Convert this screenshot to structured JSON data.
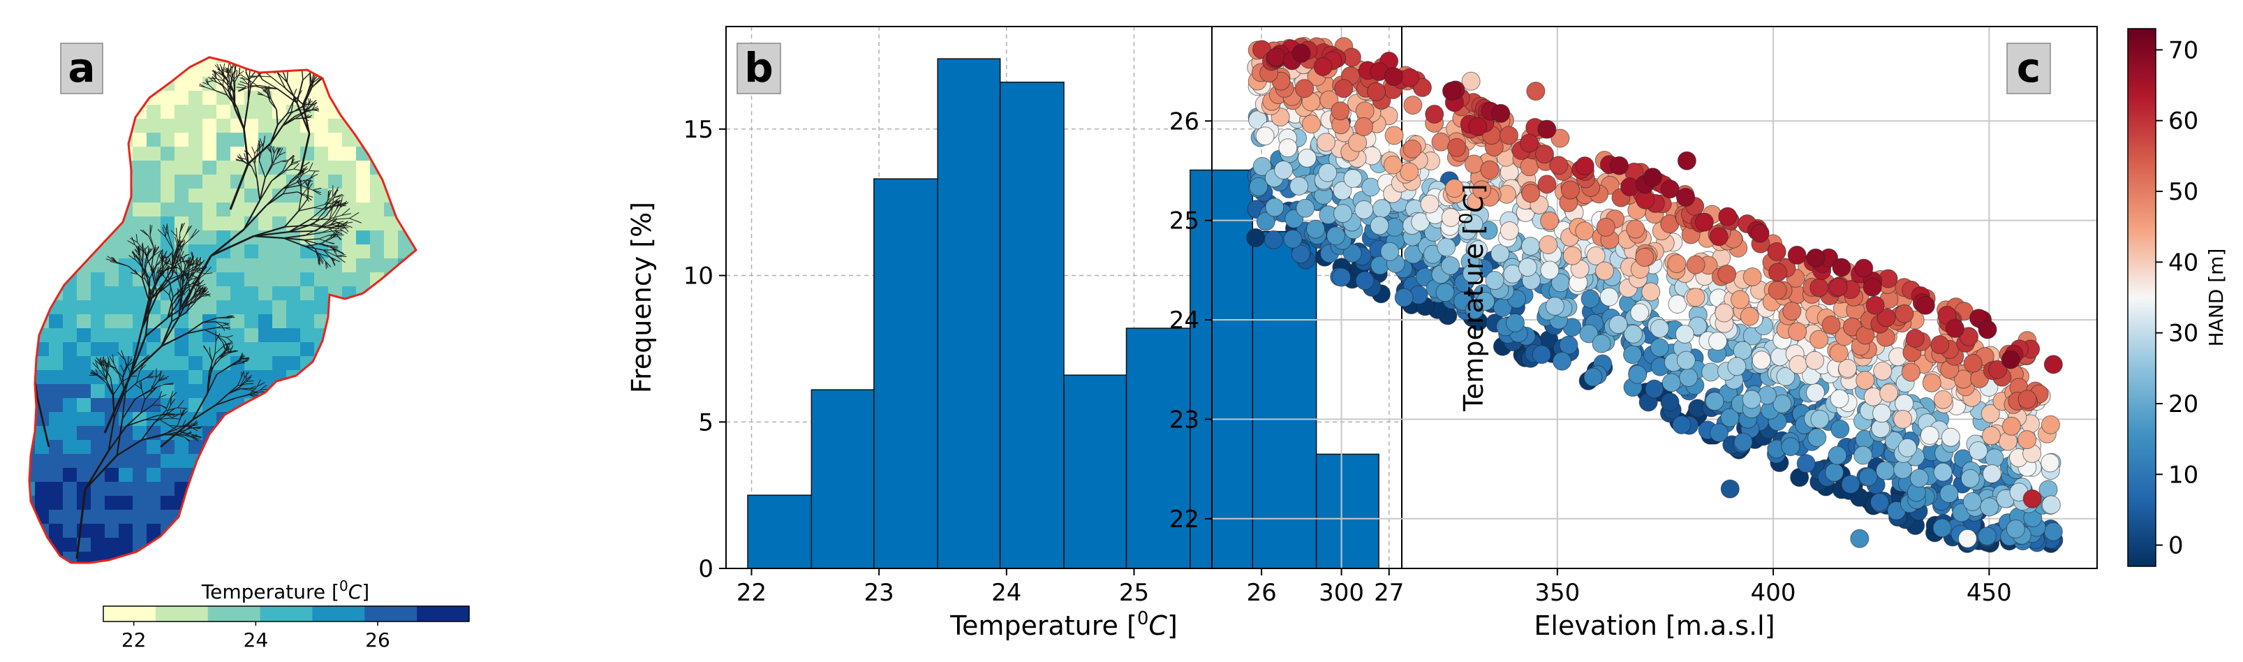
{
  "panel_labels": {
    "a": "a",
    "b": "b",
    "c": "c"
  },
  "colors": {
    "bar_fill": "#0070b8",
    "catchment_outline": "#e8241c",
    "river": "#1a1a1a",
    "label_box": "#cfcfcf",
    "grid": "#b0b0b0"
  },
  "chart_data": [
    {
      "panel": "a",
      "type": "heatmap",
      "colorbar_label": "Temperature [$^0C$]",
      "colorbar_label_parts": {
        "pre": "Temperature [",
        "sup": "0",
        "unit": "C",
        "post": "]"
      },
      "colorbar_ticks": [
        "22",
        "24",
        "26"
      ],
      "colorbar_tick_values": [
        22,
        24,
        26
      ],
      "color_range": [
        21.5,
        27.5
      ],
      "colormap": [
        "#ffffcc",
        "#c7e9b4",
        "#7fcdbb",
        "#41b6c4",
        "#1d91c0",
        "#225ea8",
        "#0c2c84"
      ]
    },
    {
      "panel": "b",
      "type": "bar",
      "xlabel": "Temperature [$^0C$]",
      "xlabel_parts": {
        "pre": "Temperature [",
        "sup": "0",
        "unit": "C",
        "post": "]"
      },
      "ylabel": "Frequency [%]",
      "bin_edges": [
        21.97,
        22.47,
        22.96,
        23.46,
        23.95,
        24.45,
        24.94,
        25.44,
        25.93,
        26.43,
        26.92
      ],
      "values": [
        2.5,
        6.1,
        13.3,
        17.4,
        16.6,
        6.6,
        8.2,
        13.6,
        11.5,
        3.9
      ],
      "xlim": [
        21.8,
        27.1
      ],
      "ylim": [
        0,
        18.5
      ],
      "xticks": [
        22,
        23,
        24,
        25,
        26,
        27
      ],
      "yticks": [
        0,
        5,
        10,
        15
      ],
      "grid": true
    },
    {
      "panel": "c",
      "type": "scatter",
      "xlabel": "Elevation [m.a.s.l]",
      "ylabel": "Temperature [$^0C$]",
      "ylabel_parts": {
        "pre": "Temperature [",
        "sup": "0",
        "unit": "C",
        "post": "]"
      },
      "xlim": [
        270,
        475
      ],
      "ylim": [
        21.5,
        26.95
      ],
      "xticks": [
        300,
        350,
        400,
        450
      ],
      "yticks": [
        22,
        23,
        24,
        25,
        26
      ],
      "grid": true,
      "color_variable": "HAND [m]",
      "colorbar_label": "HAND [m]",
      "colorbar_ticks": [
        0,
        10,
        20,
        30,
        40,
        50,
        60,
        70
      ],
      "color_range": [
        -3,
        73
      ],
      "colormap": [
        "#053061",
        "#2166ac",
        "#4393c3",
        "#92c5de",
        "#f7f7f7",
        "#f4a582",
        "#d6604d",
        "#b2182b",
        "#67001f"
      ],
      "trend": {
        "elevation": [
          280,
          465
        ],
        "temperature_center": [
          26.0,
          22.5
        ]
      },
      "points": [
        {
          "x": 285,
          "y": 26.5,
          "hand": 0
        },
        {
          "x": 300,
          "y": 26.0,
          "hand": 2
        },
        {
          "x": 330,
          "y": 26.4,
          "hand": 40
        },
        {
          "x": 345,
          "y": 26.3,
          "hand": 55
        },
        {
          "x": 325,
          "y": 25.4,
          "hand": 5
        },
        {
          "x": 380,
          "y": 25.6,
          "hand": 68
        },
        {
          "x": 360,
          "y": 25.0,
          "hand": 35
        },
        {
          "x": 390,
          "y": 25.0,
          "hand": 60
        },
        {
          "x": 335,
          "y": 24.6,
          "hand": 3
        },
        {
          "x": 370,
          "y": 24.3,
          "hand": 20
        },
        {
          "x": 400,
          "y": 24.3,
          "hand": 45
        },
        {
          "x": 440,
          "y": 24.1,
          "hand": 50
        },
        {
          "x": 455,
          "y": 23.6,
          "hand": 70
        },
        {
          "x": 360,
          "y": 23.5,
          "hand": 5
        },
        {
          "x": 395,
          "y": 23.2,
          "hand": 25
        },
        {
          "x": 430,
          "y": 23.0,
          "hand": 40
        },
        {
          "x": 460,
          "y": 22.2,
          "hand": 62
        },
        {
          "x": 390,
          "y": 22.3,
          "hand": 4
        },
        {
          "x": 420,
          "y": 21.8,
          "hand": 15
        },
        {
          "x": 445,
          "y": 21.8,
          "hand": 35
        }
      ]
    }
  ]
}
